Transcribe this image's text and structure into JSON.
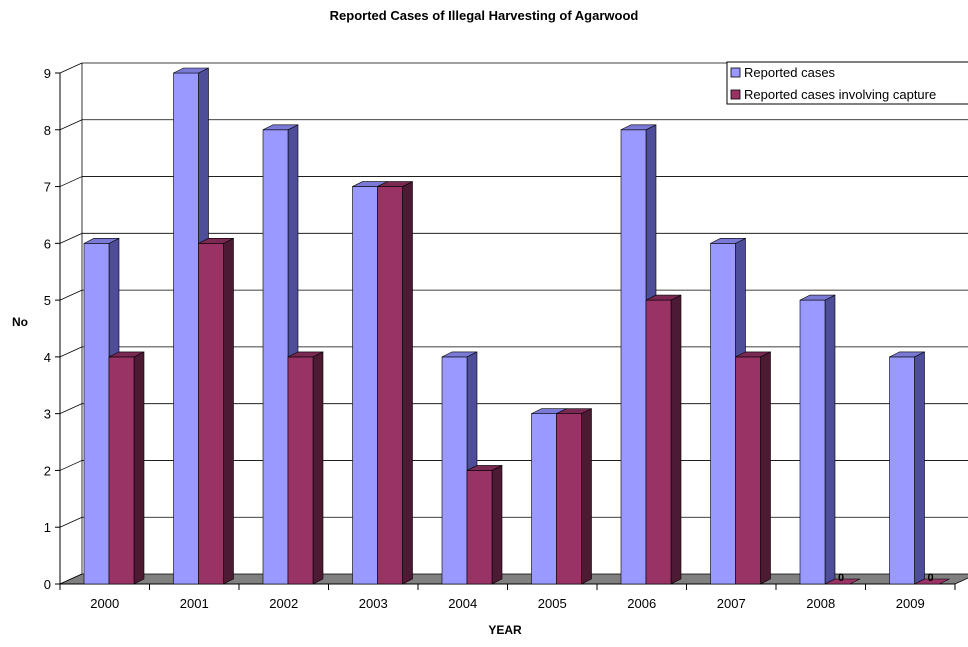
{
  "chart_data": {
    "type": "bar",
    "title": "Reported Cases of Illegal Harvesting of Agarwood",
    "xlabel": "YEAR",
    "ylabel": "No",
    "categories": [
      "2000",
      "2001",
      "2002",
      "2003",
      "2004",
      "2005",
      "2006",
      "2007",
      "2008",
      "2009"
    ],
    "series": [
      {
        "name": "Reported cases",
        "values": [
          6,
          9,
          8,
          7,
          4,
          3,
          8,
          6,
          5,
          4
        ]
      },
      {
        "name": "Reported cases involving capture",
        "values": [
          4,
          6,
          4,
          7,
          2,
          3,
          5,
          4,
          0,
          0
        ]
      }
    ],
    "data_labels": [
      "0",
      "0"
    ],
    "ylim": [
      0,
      9
    ],
    "y_ticks": [
      "0",
      "1",
      "2",
      "3",
      "4",
      "5",
      "6",
      "7",
      "8",
      "9"
    ],
    "grid": true,
    "legend_position": "top-right",
    "three_d": true,
    "colors": {
      "series_1_front": "#9999ff",
      "series_1_side": "#4d4d99",
      "series_1_top": "#7a7ad6",
      "series_2_front": "#993366",
      "series_2_side": "#4d1a33",
      "series_2_top": "#7a2952",
      "floor": "#808080",
      "grid": "#000000"
    }
  }
}
